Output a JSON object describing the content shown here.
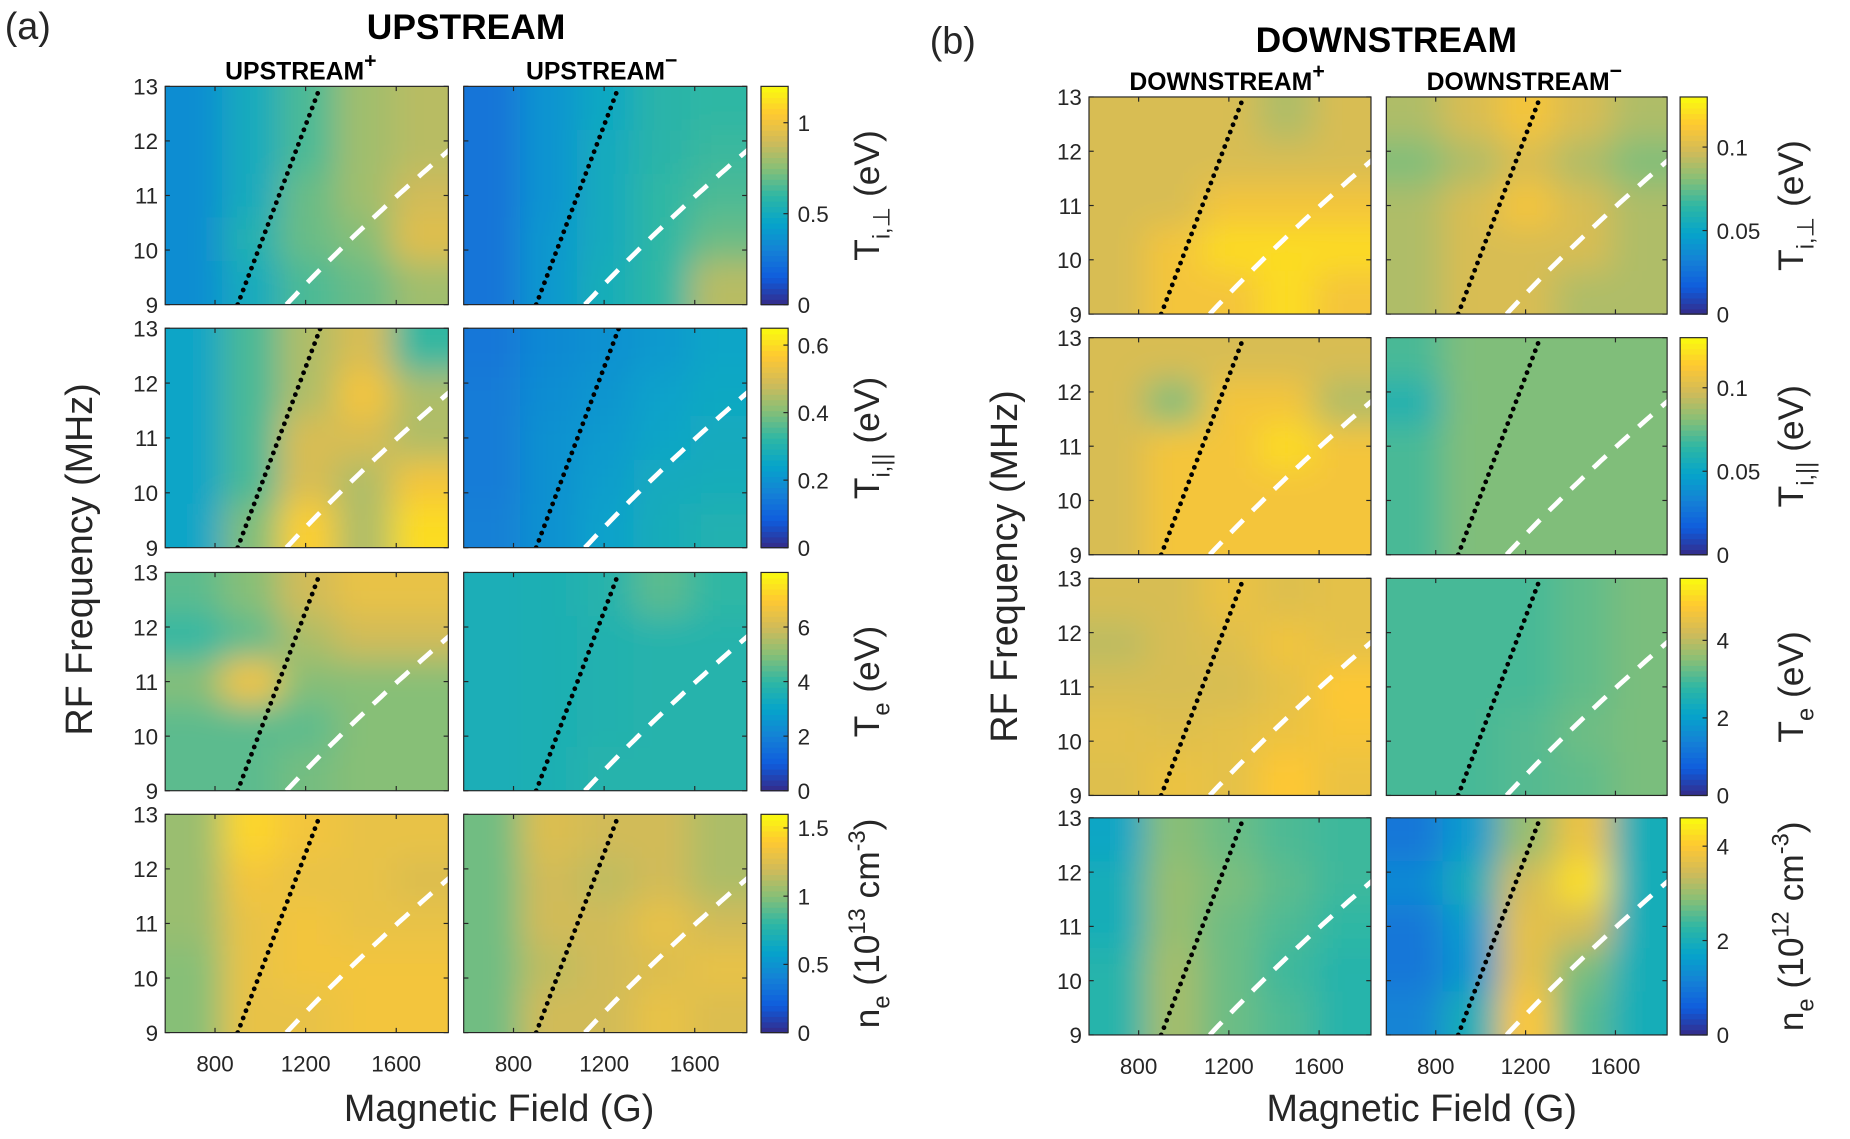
{
  "figure": {
    "label_a": "(a)",
    "label_b": "(b)",
    "title_a": "UPSTREAM",
    "title_b": "DOWNSTREAM",
    "sub_a_plus": "UPSTREAM",
    "sub_a_minus": "UPSTREAM",
    "sub_b_plus": "DOWNSTREAM",
    "sub_b_minus": "DOWNSTREAM",
    "plus_sign": "+",
    "minus_sign": "−",
    "ylabel": "RF   Frequency  (MHz)",
    "xlabel": "Magnetic Field (G)"
  },
  "chart_data": {
    "type": "heatmap",
    "xlabel": "Magnetic Field (G)",
    "ylabel": "RF   Frequency  (MHz)",
    "xlim": [
      580,
      1830
    ],
    "ylim": [
      9,
      13
    ],
    "xticks": [
      800,
      1200,
      1600
    ],
    "yticks": [
      9,
      10,
      11,
      12,
      13
    ],
    "colormap": "parula",
    "colormap_stops": [
      "#352a87",
      "#0f5cdd",
      "#1481d6",
      "#06a4ca",
      "#2eb7a4",
      "#87bf77",
      "#d1bb59",
      "#fec832",
      "#f9fb0e"
    ],
    "grid_B": [
      600,
      900,
      1200,
      1500,
      1800
    ],
    "grid_f": [
      13,
      12,
      11,
      10,
      9
    ],
    "overlay_lines": [
      {
        "style": "black-dotted",
        "points_B_f": [
          [
            900,
            9
          ],
          [
            1265,
            13
          ]
        ]
      },
      {
        "style": "white-dashed",
        "formula": "f = 9 (B/1115)^0.55"
      }
    ],
    "groups": [
      {
        "key": "a",
        "columns": [
          "UPSTREAM+",
          "UPSTREAM−"
        ],
        "rows": [
          {
            "label": {
              "main": "T",
              "sub": "i,⊥",
              "unit": "(eV)"
            },
            "clim": [
              0,
              1.2
            ],
            "ticks": [
              "0",
              "0.5",
              "1"
            ],
            "panels": [
              [
                [
                  0.35,
                  0.5,
                  0.65,
                  0.8,
                  0.85
                ],
                [
                  0.35,
                  0.5,
                  0.65,
                  0.8,
                  0.85
                ],
                [
                  0.35,
                  0.5,
                  0.7,
                  0.8,
                  0.9
                ],
                [
                  0.35,
                  0.55,
                  0.7,
                  0.75,
                  0.95
                ],
                [
                  0.35,
                  0.5,
                  0.65,
                  0.7,
                  0.8
                ]
              ],
              [
                [
                  0.25,
                  0.38,
                  0.48,
                  0.58,
                  0.6
                ],
                [
                  0.25,
                  0.38,
                  0.5,
                  0.58,
                  0.62
                ],
                [
                  0.25,
                  0.38,
                  0.5,
                  0.6,
                  0.65
                ],
                [
                  0.25,
                  0.4,
                  0.5,
                  0.6,
                  0.7
                ],
                [
                  0.25,
                  0.4,
                  0.52,
                  0.6,
                  0.85
                ]
              ]
            ]
          },
          {
            "label": {
              "main": "T",
              "sub": "i,||",
              "unit": "(eV)"
            },
            "clim": [
              0,
              0.65
            ],
            "ticks": [
              "0",
              "0.2",
              "0.4",
              "0.6"
            ],
            "panels": [
              [
                [
                  0.25,
                  0.35,
                  0.45,
                  0.5,
                  0.33
                ],
                [
                  0.25,
                  0.35,
                  0.45,
                  0.55,
                  0.45
                ],
                [
                  0.25,
                  0.35,
                  0.5,
                  0.5,
                  0.45
                ],
                [
                  0.25,
                  0.35,
                  0.5,
                  0.45,
                  0.55
                ],
                [
                  0.25,
                  0.4,
                  0.58,
                  0.45,
                  0.6
                ]
              ],
              [
                [
                  0.14,
                  0.18,
                  0.2,
                  0.22,
                  0.25
                ],
                [
                  0.15,
                  0.19,
                  0.21,
                  0.24,
                  0.26
                ],
                [
                  0.15,
                  0.2,
                  0.22,
                  0.25,
                  0.27
                ],
                [
                  0.15,
                  0.2,
                  0.23,
                  0.27,
                  0.28
                ],
                [
                  0.16,
                  0.2,
                  0.24,
                  0.28,
                  0.3
                ]
              ]
            ]
          },
          {
            "label": {
              "main": "T",
              "sub": "e",
              "unit": "(eV)"
            },
            "clim": [
              0,
              8
            ],
            "ticks": [
              "0",
              "2",
              "4",
              "6"
            ],
            "panels": [
              [
                [
                  4.5,
                  5,
                  6,
                  6.5,
                  6.5
                ],
                [
                  4,
                  4.5,
                  5.5,
                  6,
                  6
                ],
                [
                  5,
                  6.8,
                  5,
                  5,
                  5
                ],
                [
                  4.5,
                  4.5,
                  4.5,
                  5,
                  5
                ],
                [
                  4.5,
                  4.5,
                  4.8,
                  5,
                  5
                ]
              ],
              [
                [
                  3.5,
                  3.6,
                  3.8,
                  4.5,
                  4
                ],
                [
                  3.5,
                  3.6,
                  3.7,
                  3.8,
                  3.8
                ],
                [
                  3.5,
                  3.6,
                  3.7,
                  3.8,
                  3.8
                ],
                [
                  3.5,
                  3.6,
                  3.7,
                  3.8,
                  3.8
                ],
                [
                  3.5,
                  3.6,
                  3.8,
                  3.8,
                  3.8
                ]
              ]
            ]
          },
          {
            "label": {
              "main": "n",
              "sub": "e",
              "unit": "(10",
              "exp": "13",
              "unit2": " cm",
              "exp2": "-3",
              "unit3": ")"
            },
            "clim": [
              0,
              1.6
            ],
            "ticks": [
              "0",
              "0.5",
              "1",
              "1.5"
            ],
            "panels": [
              [
                [
                  1.05,
                  1.45,
                  1.35,
                  1.3,
                  1.3
                ],
                [
                  1.05,
                  1.35,
                  1.3,
                  1.3,
                  1.25
                ],
                [
                  1.05,
                  1.3,
                  1.35,
                  1.3,
                  1.3
                ],
                [
                  1.0,
                  1.3,
                  1.35,
                  1.35,
                  1.35
                ],
                [
                  1.0,
                  1.3,
                  1.3,
                  1.35,
                  1.35
                ]
              ],
              [
                [
                  0.95,
                  1.25,
                  1.2,
                  1.2,
                  1.1
                ],
                [
                  0.95,
                  1.2,
                  1.15,
                  1.2,
                  1.1
                ],
                [
                  0.95,
                  1.2,
                  1.2,
                  1.3,
                  1.2
                ],
                [
                  0.95,
                  1.15,
                  1.2,
                  1.25,
                  1.3
                ],
                [
                  0.95,
                  1.2,
                  1.2,
                  1.3,
                  1.25
                ]
              ]
            ]
          }
        ]
      },
      {
        "key": "b",
        "columns": [
          "DOWNSTREAM+",
          "DOWNSTREAM−"
        ],
        "rows": [
          {
            "label": {
              "main": "T",
              "sub": "i,⊥",
              "unit": "(eV)"
            },
            "clim": [
              0,
              0.13
            ],
            "ticks": [
              "0",
              "0.05",
              "0.1"
            ],
            "panels": [
              [
                [
                  0.1,
                  0.1,
                  0.1,
                  0.09,
                  0.1
                ],
                [
                  0.1,
                  0.1,
                  0.1,
                  0.1,
                  0.1
                ],
                [
                  0.1,
                  0.1,
                  0.11,
                  0.11,
                  0.11
                ],
                [
                  0.1,
                  0.11,
                  0.12,
                  0.12,
                  0.12
                ],
                [
                  0.1,
                  0.11,
                  0.11,
                  0.12,
                  0.11
                ]
              ],
              [
                [
                  0.09,
                  0.1,
                  0.11,
                  0.1,
                  0.09
                ],
                [
                  0.08,
                  0.09,
                  0.1,
                  0.09,
                  0.08
                ],
                [
                  0.09,
                  0.1,
                  0.11,
                  0.1,
                  0.09
                ],
                [
                  0.09,
                  0.1,
                  0.1,
                  0.1,
                  0.09
                ],
                [
                  0.09,
                  0.1,
                  0.1,
                  0.09,
                  0.09
                ]
              ]
            ]
          },
          {
            "label": {
              "main": "T",
              "sub": "i,||",
              "unit": "(eV)"
            },
            "clim": [
              0,
              0.13
            ],
            "ticks": [
              "0",
              "0.05",
              "0.1"
            ],
            "panels": [
              [
                [
                  0.1,
                  0.1,
                  0.1,
                  0.1,
                  0.1
                ],
                [
                  0.1,
                  0.08,
                  0.11,
                  0.11,
                  0.09
                ],
                [
                  0.1,
                  0.11,
                  0.11,
                  0.12,
                  0.11
                ],
                [
                  0.1,
                  0.11,
                  0.11,
                  0.11,
                  0.11
                ],
                [
                  0.1,
                  0.11,
                  0.11,
                  0.11,
                  0.11
                ]
              ],
              [
                [
                  0.07,
                  0.08,
                  0.08,
                  0.08,
                  0.08
                ],
                [
                  0.06,
                  0.08,
                  0.08,
                  0.08,
                  0.08
                ],
                [
                  0.07,
                  0.08,
                  0.08,
                  0.08,
                  0.08
                ],
                [
                  0.07,
                  0.08,
                  0.08,
                  0.08,
                  0.08
                ],
                [
                  0.07,
                  0.08,
                  0.08,
                  0.08,
                  0.08
                ]
              ]
            ]
          },
          {
            "label": {
              "main": "T",
              "sub": "e",
              "unit": "(eV)"
            },
            "clim": [
              0,
              5.6
            ],
            "ticks": [
              "0",
              "2",
              "4"
            ],
            "panels": [
              [
                [
                  4.3,
                  4.3,
                  4.6,
                  4.4,
                  4.5
                ],
                [
                  4.0,
                  4.3,
                  4.4,
                  4.7,
                  4.5
                ],
                [
                  4.3,
                  4.3,
                  4.3,
                  4.5,
                  4.9
                ],
                [
                  4.5,
                  4.4,
                  4.5,
                  4.6,
                  4.8
                ],
                [
                  4.4,
                  4.6,
                  4.5,
                  4.9,
                  4.6
                ]
              ],
              [
                [
                  3,
                  3,
                  3,
                  3.2,
                  3.4
                ],
                [
                  3,
                  3,
                  3,
                  3.2,
                  3.4
                ],
                [
                  3,
                  3,
                  3,
                  3.2,
                  3.4
                ],
                [
                  3,
                  3,
                  3.1,
                  3.3,
                  3.4
                ],
                [
                  3,
                  3,
                  3.1,
                  3.2,
                  3.4
                ]
              ]
            ]
          },
          {
            "label": {
              "main": "n",
              "sub": "e",
              "unit": "(10",
              "exp": "12",
              "unit2": " cm",
              "exp2": "-3",
              "unit3": ")"
            },
            "clim": [
              0,
              4.6
            ],
            "ticks": [
              "0",
              "2",
              "4"
            ],
            "panels": [
              [
                [
                  1.8,
                  2.9,
                  2.7,
                  2.5,
                  2.4
                ],
                [
                  2.0,
                  3.0,
                  2.8,
                  2.6,
                  2.4
                ],
                [
                  2.0,
                  3.0,
                  2.7,
                  2.5,
                  2.3
                ],
                [
                  2.2,
                  3.1,
                  2.7,
                  2.4,
                  2.2
                ],
                [
                  2.2,
                  3.1,
                  2.7,
                  2.5,
                  2.2
                ]
              ],
              [
                [
                  1.0,
                  1.6,
                  3.0,
                  3.8,
                  2.0
                ],
                [
                  1.3,
                  2.0,
                  3.5,
                  4.3,
                  2.0
                ],
                [
                  1.0,
                  1.6,
                  3.7,
                  3.5,
                  2.0
                ],
                [
                  1.0,
                  1.5,
                  3.7,
                  2.8,
                  2.0
                ],
                [
                  1.2,
                  2.0,
                  4.0,
                  2.6,
                  2.0
                ]
              ]
            ]
          }
        ]
      }
    ]
  }
}
